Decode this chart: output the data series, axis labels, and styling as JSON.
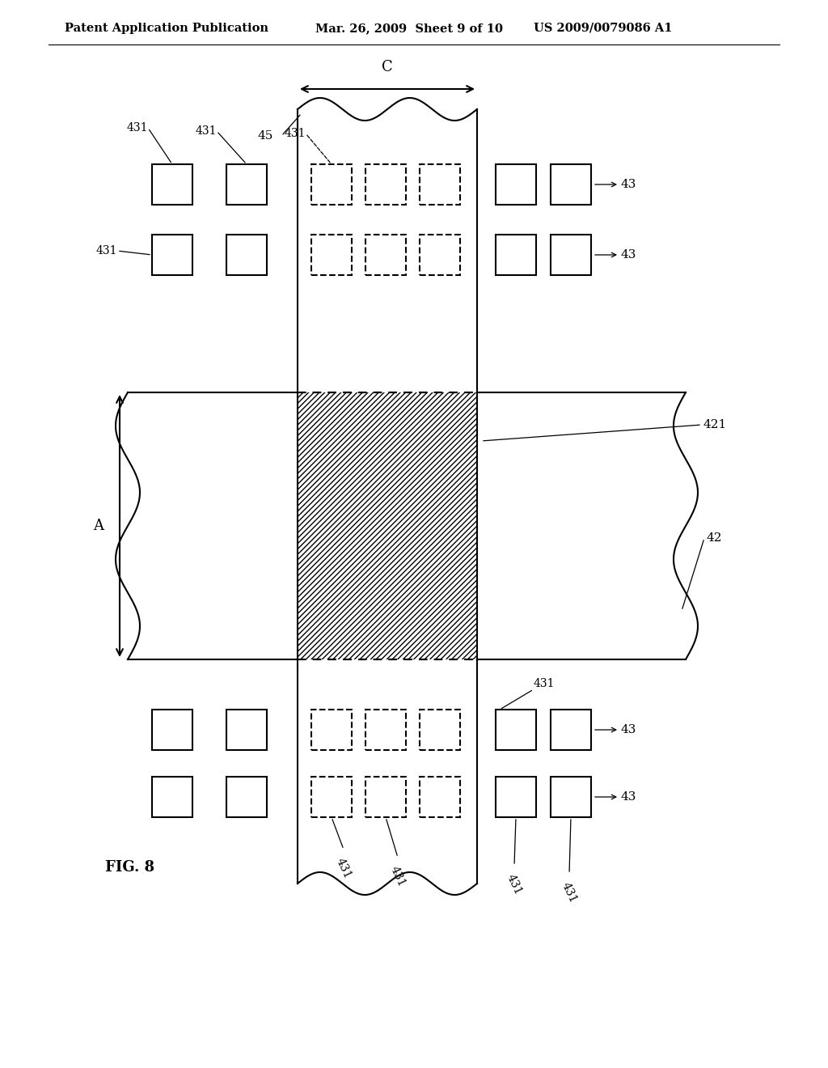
{
  "header_left": "Patent Application Publication",
  "header_mid": "Mar. 26, 2009  Sheet 9 of 10",
  "header_right": "US 2009/0079086 A1",
  "fig_label": "FIG. 8",
  "bg_color": "#ffffff",
  "line_color": "#000000"
}
